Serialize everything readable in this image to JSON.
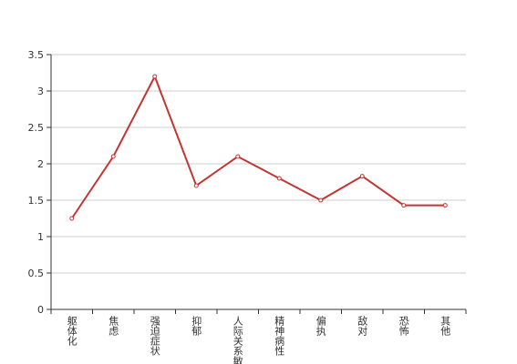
{
  "chart_data": {
    "type": "line",
    "categories": [
      "躯体化",
      "焦虑",
      "强迫症状",
      "抑郁",
      "人际关系敏感",
      "精神病性",
      "偏执",
      "敌对",
      "恐怖",
      "其他"
    ],
    "series": [
      {
        "color": "#c23531",
        "values": [
          1.25,
          2.1,
          3.2,
          1.7,
          2.1,
          1.8,
          1.5,
          1.83,
          1.43,
          1.43
        ]
      }
    ],
    "ylim": [
      0,
      3.5
    ],
    "yticks": [
      0,
      0.5,
      1,
      1.5,
      2,
      2.5,
      3,
      3.5
    ],
    "grid": true
  }
}
